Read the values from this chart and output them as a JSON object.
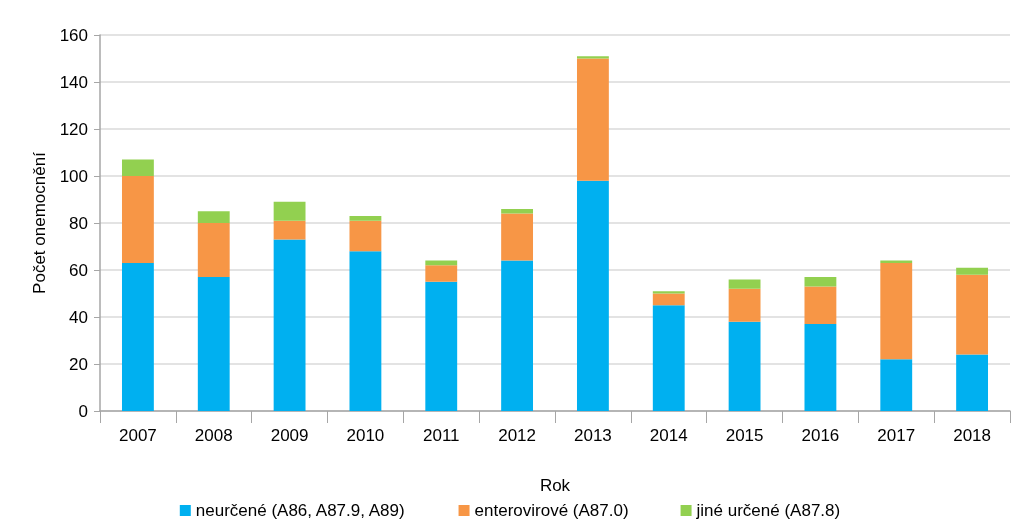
{
  "chart_data": {
    "type": "bar",
    "stacked": true,
    "xlabel": "Rok",
    "ylabel": "Počet onemocnění",
    "categories": [
      "2007",
      "2008",
      "2009",
      "2010",
      "2011",
      "2012",
      "2013",
      "2014",
      "2015",
      "2016",
      "2017",
      "2018"
    ],
    "series": [
      {
        "name": "neurčené (A86, A87.9, A89)",
        "color": "#00b0f0",
        "values": [
          63,
          57,
          73,
          68,
          55,
          64,
          98,
          45,
          38,
          37,
          22,
          24
        ]
      },
      {
        "name": "enterovirové (A87.0)",
        "color": "#f79646",
        "values": [
          37,
          23,
          8,
          13,
          7,
          20,
          52,
          5,
          14,
          16,
          41,
          34
        ]
      },
      {
        "name": "jiné určené (A87.8)",
        "color": "#92d050",
        "values": [
          7,
          5,
          8,
          2,
          2,
          2,
          1,
          1,
          4,
          4,
          1,
          3
        ]
      }
    ],
    "ylim": [
      0,
      160
    ],
    "yticks": [
      0,
      20,
      40,
      60,
      80,
      100,
      120,
      140,
      160
    ],
    "grid": "y",
    "legend": "bottom"
  }
}
